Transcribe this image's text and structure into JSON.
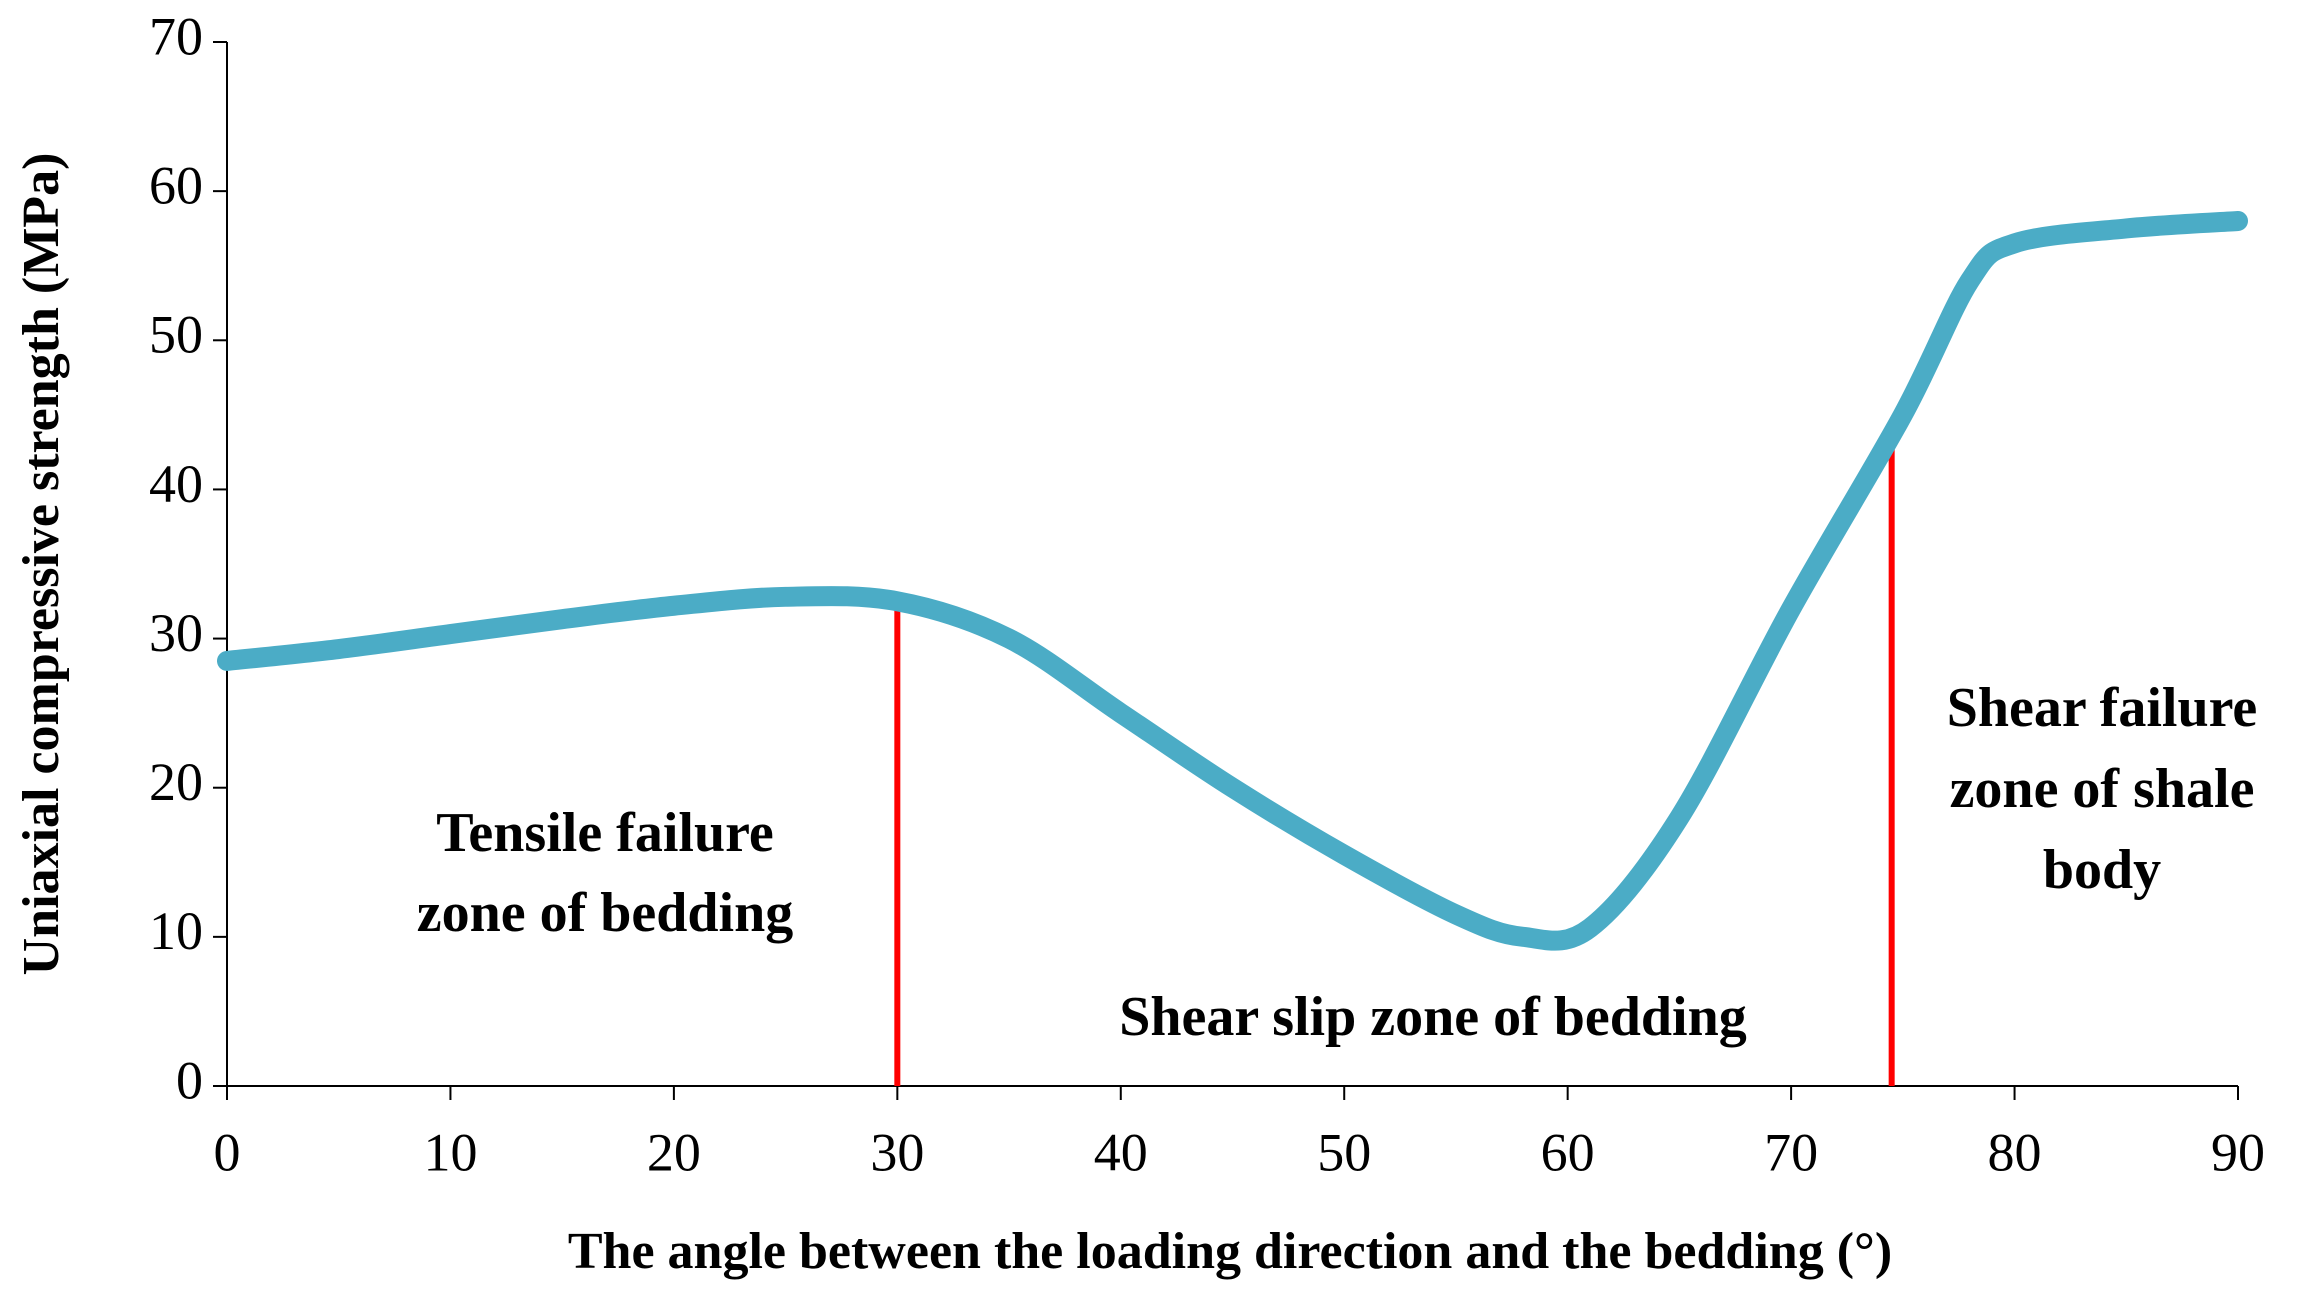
{
  "chart_data": {
    "type": "line",
    "x_label": "The angle between the loading direction and the bedding (°)",
    "y_label": "Uniaxial compressive strength (MPa)",
    "series": [
      {
        "name": "Uniaxial compressive strength",
        "color": "#4bacc6",
        "x": [
          0,
          5,
          10,
          15,
          20,
          25,
          30,
          35,
          40,
          45,
          50,
          55,
          58,
          61,
          65,
          70,
          75,
          78,
          80,
          85,
          90
        ],
        "values": [
          28.5,
          29.3,
          30.3,
          31.3,
          32.2,
          32.8,
          32.5,
          30,
          25,
          20,
          15.5,
          11.5,
          10,
          10.6,
          18,
          32,
          45,
          54,
          56.5,
          57.5,
          58
        ]
      }
    ],
    "zone_boundaries": {
      "color": "#ff0000",
      "x": [
        30,
        74.5
      ],
      "values": [
        32.5,
        43
      ]
    },
    "annotations": [
      {
        "lines": [
          "Tensile failure",
          "zone of bedding"
        ]
      },
      {
        "lines": [
          "Shear slip zone of bedding"
        ]
      },
      {
        "lines": [
          "Shear failure",
          "zone of shale",
          "body"
        ]
      }
    ],
    "xlim": [
      0,
      90
    ],
    "xticks": [
      0,
      10,
      20,
      30,
      40,
      50,
      60,
      70,
      80,
      90
    ],
    "ylim": [
      0,
      70
    ],
    "yticks": [
      0,
      10,
      20,
      30,
      40,
      50,
      60,
      70
    ],
    "grid": false
  }
}
